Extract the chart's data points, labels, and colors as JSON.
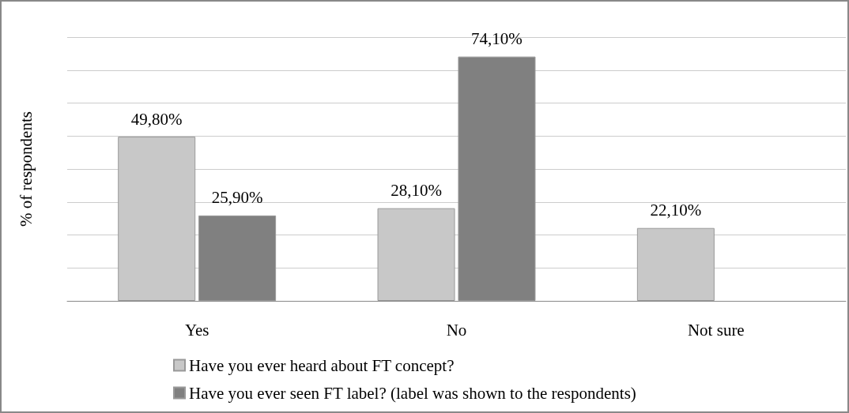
{
  "chart_data": {
    "type": "bar",
    "ylabel": "% of respondents",
    "categories": [
      "Yes",
      "No",
      "Not sure"
    ],
    "series": [
      {
        "name": "Have you ever heard about FT concept?",
        "color": "#c8c8c8",
        "values": [
          49.8,
          28.1,
          22.1
        ],
        "value_labels": [
          "49,80%",
          "28,10%",
          "22,10%"
        ]
      },
      {
        "name": "Have you ever seen FT label? (label was shown to the respondents)",
        "color": "#808080",
        "values": [
          25.9,
          74.1,
          null
        ],
        "value_labels": [
          "25,90%",
          "74,10%",
          null
        ]
      }
    ],
    "ylim": [
      0,
      80
    ],
    "yticks": [
      {
        "value": 0,
        "label": null
      },
      {
        "value": 10,
        "label": null
      },
      {
        "value": 20,
        "label": null
      },
      {
        "value": 30,
        "label": null
      },
      {
        "value": 40,
        "label": null
      },
      {
        "value": 50,
        "label": null
      },
      {
        "value": 60,
        "label": null
      },
      {
        "value": 70,
        "label": null
      },
      {
        "value": 80,
        "label": null
      }
    ],
    "tick_labels": "x",
    "grid": true,
    "legend": "bottom"
  }
}
